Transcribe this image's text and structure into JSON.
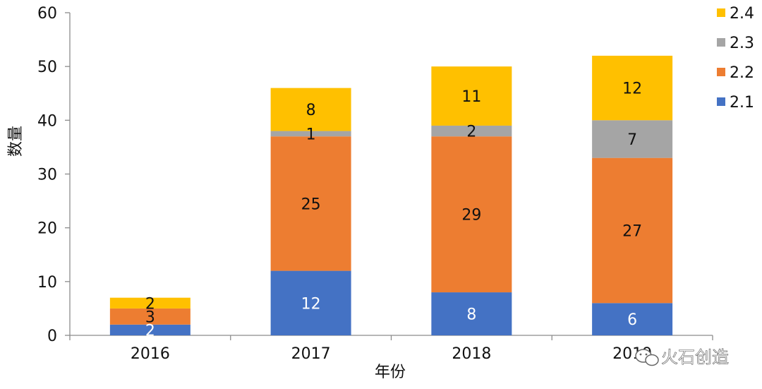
{
  "chart_data": {
    "type": "bar",
    "stacked": true,
    "categories": [
      "2016",
      "2017",
      "2018",
      "2019"
    ],
    "series": [
      {
        "name": "2.1",
        "values": [
          2,
          12,
          8,
          6
        ],
        "color": "#4472C4",
        "label_color": "#ffffff"
      },
      {
        "name": "2.2",
        "values": [
          3,
          25,
          29,
          27
        ],
        "color": "#ED7D31",
        "label_color": "#111111"
      },
      {
        "name": "2.3",
        "values": [
          0,
          1,
          2,
          7
        ],
        "color": "#A5A5A5",
        "label_color": "#111111"
      },
      {
        "name": "2.4",
        "values": [
          2,
          8,
          11,
          12
        ],
        "color": "#FFC000",
        "label_color": "#111111"
      }
    ],
    "xlabel": "年份",
    "ylabel": "数量",
    "ylim": [
      0,
      60
    ],
    "yticks": [
      0,
      10,
      20,
      30,
      40,
      50,
      60
    ],
    "grid": false,
    "legend_position": "right"
  },
  "watermark": {
    "text": "火石创造",
    "icon": "wechat-icon"
  }
}
